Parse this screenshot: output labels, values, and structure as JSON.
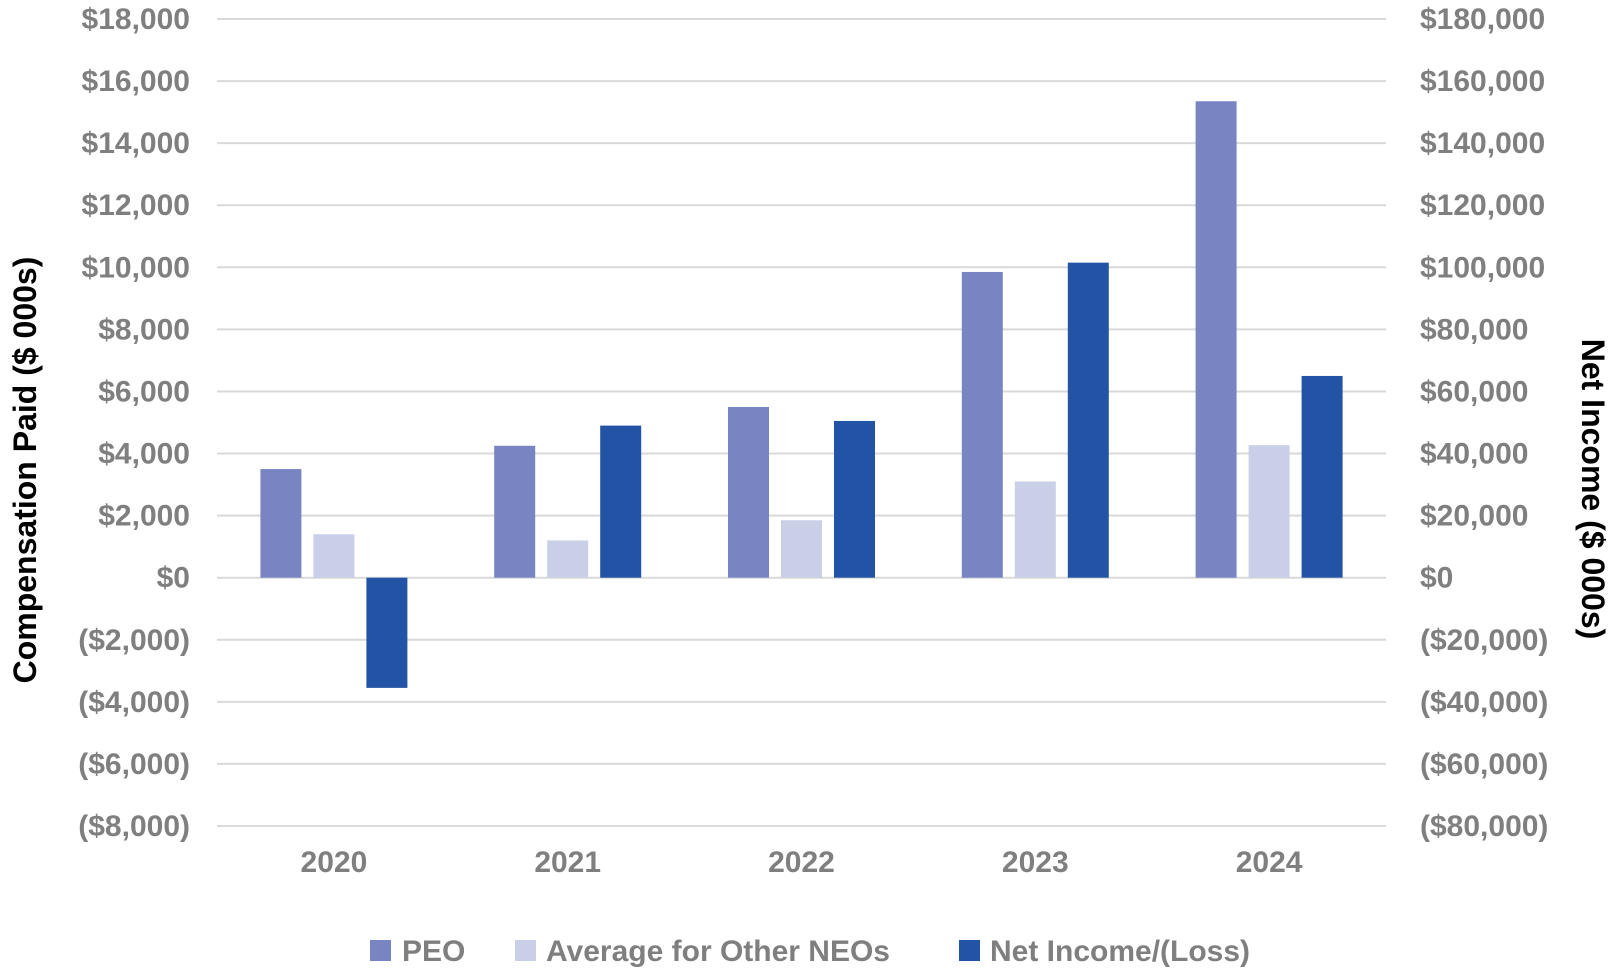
{
  "chart_data": {
    "type": "bar",
    "categories": [
      "2020",
      "2021",
      "2022",
      "2023",
      "2024"
    ],
    "series": [
      {
        "name": "PEO",
        "axis": "left",
        "color": "#7885c2",
        "values": [
          3500,
          4250,
          5500,
          9850,
          15350
        ]
      },
      {
        "name": "Average for Other NEOs",
        "axis": "left",
        "color": "#cacfe8",
        "values": [
          1400,
          1200,
          1850,
          3100,
          4270
        ]
      },
      {
        "name": "Net Income/(Loss)",
        "axis": "right",
        "color": "#2353a5",
        "values": [
          -35500,
          49000,
          50500,
          101500,
          65000
        ]
      }
    ],
    "y_left": {
      "label": "Compensation Paid ($ 000s)",
      "range": [
        -8000,
        18000
      ],
      "ticks": [
        18000,
        16000,
        14000,
        12000,
        10000,
        8000,
        6000,
        4000,
        2000,
        0,
        -2000,
        -4000,
        -6000,
        -8000
      ],
      "tick_labels": [
        "$18,000",
        "$16,000",
        "$14,000",
        "$12,000",
        "$10,000",
        "$8,000",
        "$6,000",
        "$4,000",
        "$2,000",
        "$0",
        "($2,000)",
        "($4,000)",
        "($6,000)",
        "($8,000)"
      ]
    },
    "y_right": {
      "label": "Net Income ($ 000s)",
      "range": [
        -80000,
        180000
      ],
      "tick_labels": [
        "$180,000",
        "$160,000",
        "$140,000",
        "$120,000",
        "$100,000",
        "$80,000",
        "$60,000",
        "$40,000",
        "$20,000",
        "$0",
        "($20,000)",
        "($40,000)",
        "($60,000)",
        "($80,000)"
      ]
    },
    "grid": true,
    "legend": "bottom"
  }
}
